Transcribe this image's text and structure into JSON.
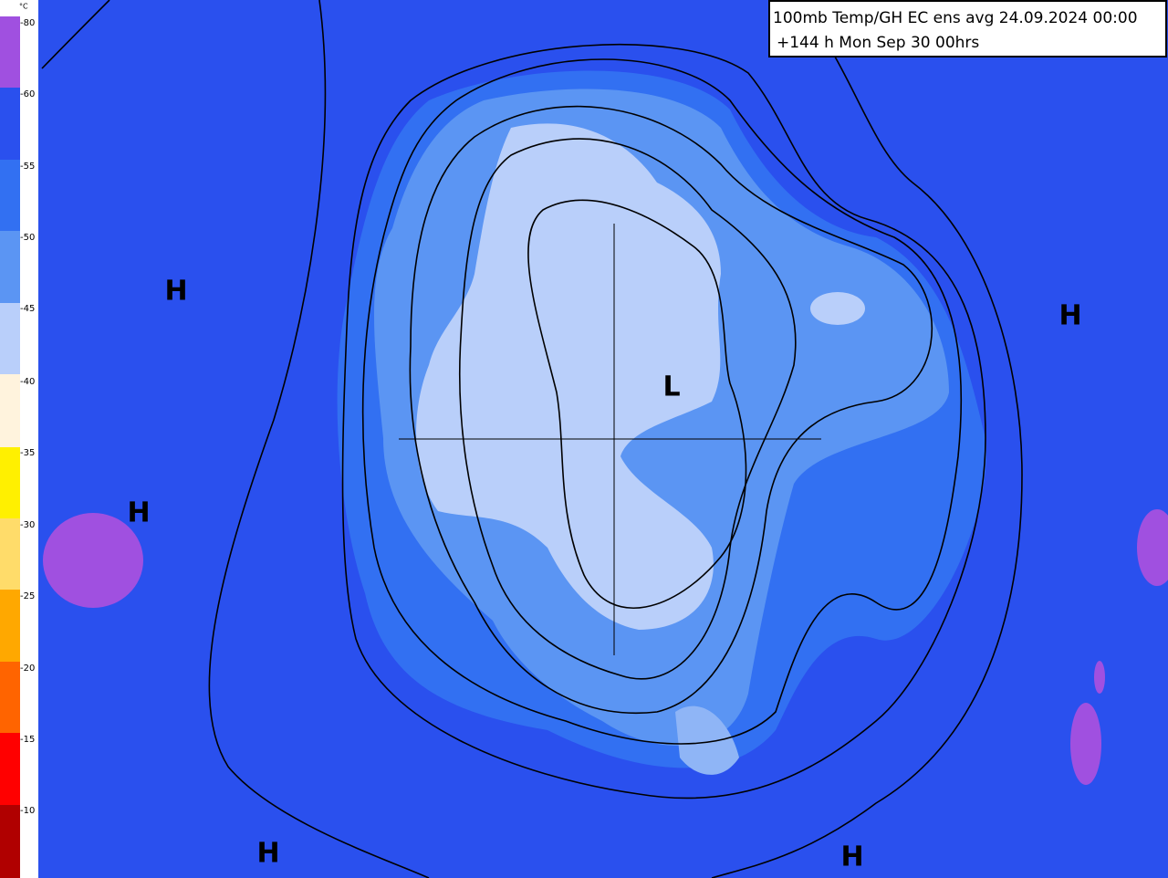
{
  "header": {
    "title": "100mb Temp/GH  EC ens avg 24.09.2024 00:00",
    "subtitle": "+144 h Mon Sep 30 00hrs"
  },
  "legend": {
    "unit": "°C",
    "labels": [
      "-80",
      "-60",
      "-55",
      "-50",
      "-45",
      "-40",
      "-35",
      "-30",
      "-25",
      "-20",
      "-15",
      "-10"
    ]
  },
  "map_labels": [
    "H",
    "H",
    "H",
    "H",
    "H",
    "L"
  ]
}
